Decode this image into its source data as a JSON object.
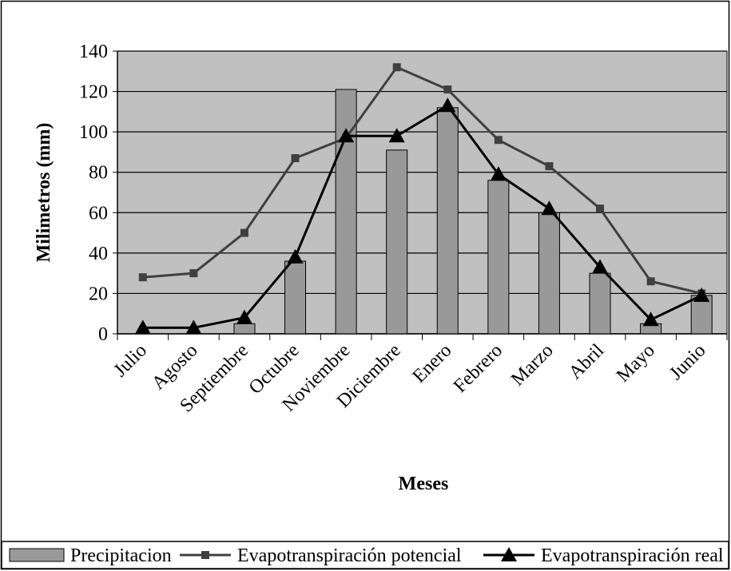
{
  "chart_data": {
    "type": "bar-line",
    "x_label": "Meses",
    "y_label": "Milimetros (mm)",
    "categories": [
      "Julio",
      "Agosto",
      "Septiembre",
      "Octubre",
      "Noviembre",
      "Diciembre",
      "Enero",
      "Febrero",
      "Marzo",
      "Abril",
      "Mayo",
      "Junio"
    ],
    "series": [
      {
        "name": "Precipitacion",
        "type": "bar",
        "color": "#999999",
        "values": [
          0,
          0,
          5,
          36,
          121,
          91,
          112,
          76,
          60,
          30,
          5,
          19
        ]
      },
      {
        "name": "Evapotranspiración potencial",
        "type": "line",
        "marker": "square",
        "color": "#404040",
        "values": [
          28,
          30,
          50,
          87,
          97,
          132,
          121,
          96,
          83,
          62,
          26,
          20
        ]
      },
      {
        "name": "Evapotranspiración real",
        "type": "line",
        "marker": "triangle",
        "color": "#000000",
        "values": [
          3,
          3,
          8,
          38,
          98,
          98,
          113,
          79,
          62,
          33,
          7,
          19
        ]
      }
    ],
    "ylim": [
      0,
      140
    ],
    "yticks": [
      0,
      20,
      40,
      60,
      80,
      100,
      120,
      140
    ],
    "grid": true,
    "plot_background": "#c0c0c0",
    "legend": "bottom"
  }
}
